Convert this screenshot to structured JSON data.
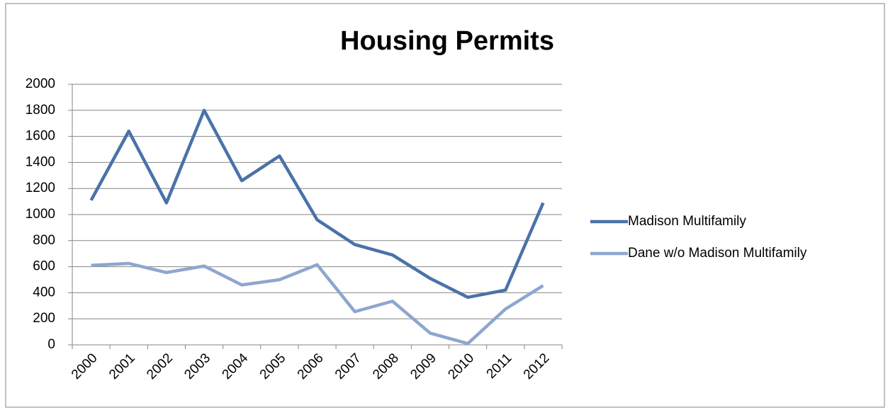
{
  "chart_data": {
    "type": "line",
    "title": "Housing Permits",
    "categories": [
      "2000",
      "2001",
      "2002",
      "2003",
      "2004",
      "2005",
      "2006",
      "2007",
      "2008",
      "2009",
      "2010",
      "2011",
      "2012"
    ],
    "series": [
      {
        "name": "Madison Multifamily",
        "color": "#4a72a8",
        "values": [
          1110,
          1640,
          1090,
          1800,
          1260,
          1450,
          960,
          770,
          690,
          510,
          365,
          420,
          1090
        ]
      },
      {
        "name": "Dane w/o Madison Multifamily",
        "color": "#8ea6cf",
        "values": [
          610,
          625,
          555,
          605,
          460,
          500,
          615,
          255,
          335,
          90,
          10,
          275,
          455
        ]
      }
    ],
    "ylim": [
      0,
      2000
    ],
    "yticks": [
      0,
      200,
      400,
      600,
      800,
      1000,
      1200,
      1400,
      1600,
      1800,
      2000
    ],
    "grid": true,
    "legend": "right"
  }
}
